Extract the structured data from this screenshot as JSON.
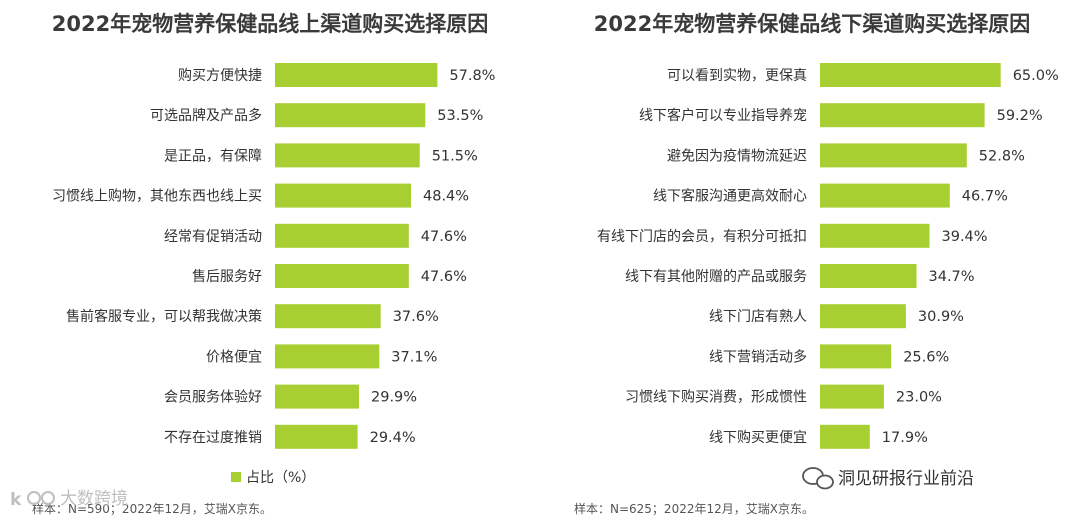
{
  "colors": {
    "bar": "#A8CF32",
    "text": "#333333",
    "title": "#3a3a3a"
  },
  "legend_label": "占比（%）",
  "chart_data": [
    {
      "type": "bar",
      "orientation": "horizontal",
      "title": "2022年宠物营养保健品线上渠道购买选择原因",
      "categories": [
        "购买方便快捷",
        "可选品牌及产品多",
        "是正品，有保障",
        "习惯线上购物，其他东西也线上买",
        "经常有促销活动",
        "售后服务好",
        "售前客服专业，可以帮我做决策",
        "价格便宜",
        "会员服务体验好",
        "不存在过度推销"
      ],
      "values": [
        57.8,
        53.5,
        51.5,
        48.4,
        47.6,
        47.6,
        37.6,
        37.1,
        29.9,
        29.4
      ],
      "value_labels": [
        "57.8%",
        "53.5%",
        "51.5%",
        "48.4%",
        "47.6%",
        "47.6%",
        "37.6%",
        "37.1%",
        "29.9%",
        "29.4%"
      ],
      "unit": "%",
      "legend": "占比（%）",
      "source": "样本：N=590；2022年12月，艾瑞X京东。"
    },
    {
      "type": "bar",
      "orientation": "horizontal",
      "title": "2022年宠物营养保健品线下渠道购买选择原因",
      "categories": [
        "可以看到实物，更保真",
        "线下客户可以专业指导养宠",
        "避免因为疫情物流延迟",
        "线下客服沟通更高效耐心",
        "有线下门店的会员，有积分可抵扣",
        "线下有其他附赠的产品或服务",
        "线下门店有熟人",
        "线下营销活动多",
        "习惯线下购买消费，形成惯性",
        "线下购买更便宜"
      ],
      "values": [
        65.0,
        59.2,
        52.8,
        46.7,
        39.4,
        34.7,
        30.9,
        25.6,
        23.0,
        17.9
      ],
      "value_labels": [
        "65.0%",
        "59.2%",
        "52.8%",
        "46.7%",
        "39.4%",
        "34.7%",
        "30.9%",
        "25.6%",
        "23.0%",
        "17.9%"
      ],
      "unit": "%",
      "source": "样本：N=625；2022年12月，艾瑞X京东。"
    }
  ],
  "watermarks": {
    "left": "大数跨境",
    "right": "洞见研报行业前沿"
  }
}
